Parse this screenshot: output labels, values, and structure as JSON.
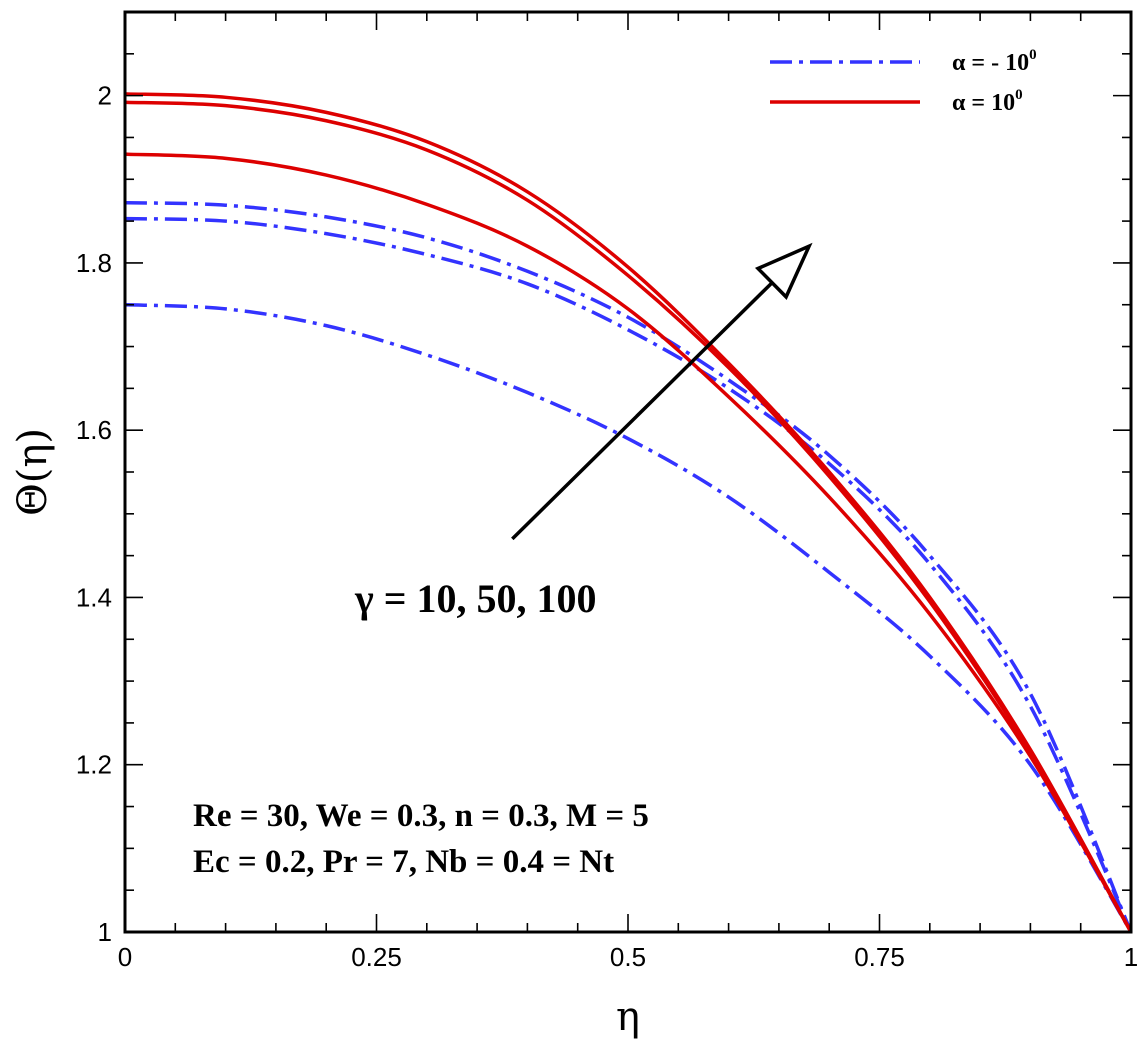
{
  "chart_data": {
    "type": "line",
    "title": "",
    "xlabel": "η",
    "ylabel": "Θ(η)",
    "xlim": [
      0,
      1
    ],
    "ylim": [
      1,
      2.1
    ],
    "xticks": [
      0,
      0.25,
      0.5,
      0.75,
      1
    ],
    "xtick_labels": [
      "0",
      "0.25",
      "0.5",
      "0.75",
      "1"
    ],
    "yticks": [
      1,
      1.2,
      1.4,
      1.6,
      1.8,
      2
    ],
    "ytick_labels": [
      "1",
      "1.2",
      "1.4",
      "1.6",
      "1.8",
      "2"
    ],
    "grid": false,
    "legend_position": "top-right",
    "legend": [
      {
        "label": "α = - 10",
        "superscript": "0",
        "style": "dashdot",
        "color": "#3333ff"
      },
      {
        "label": "α = 10",
        "superscript": "0",
        "style": "solid",
        "color": "#dd0000"
      }
    ],
    "x": [
      0,
      0.1,
      0.2,
      0.3,
      0.4,
      0.5,
      0.6,
      0.7,
      0.8,
      0.9,
      1.0
    ],
    "series": [
      {
        "group": 0,
        "gamma": 10,
        "values": [
          1.75,
          1.745,
          1.725,
          1.69,
          1.645,
          1.59,
          1.52,
          1.43,
          1.33,
          1.2,
          1.0
        ]
      },
      {
        "group": 0,
        "gamma": 50,
        "values": [
          1.853,
          1.85,
          1.835,
          1.81,
          1.775,
          1.72,
          1.65,
          1.56,
          1.44,
          1.27,
          1.0
        ]
      },
      {
        "group": 0,
        "gamma": 100,
        "values": [
          1.872,
          1.869,
          1.855,
          1.83,
          1.79,
          1.735,
          1.66,
          1.57,
          1.45,
          1.285,
          1.0
        ]
      },
      {
        "group": 1,
        "gamma": 10,
        "values": [
          1.93,
          1.925,
          1.905,
          1.87,
          1.82,
          1.745,
          1.64,
          1.52,
          1.38,
          1.21,
          1.0
        ]
      },
      {
        "group": 1,
        "gamma": 50,
        "values": [
          1.992,
          1.988,
          1.97,
          1.935,
          1.875,
          1.785,
          1.675,
          1.545,
          1.395,
          1.215,
          1.0
        ]
      },
      {
        "group": 1,
        "gamma": 100,
        "values": [
          2.002,
          1.998,
          1.98,
          1.945,
          1.885,
          1.795,
          1.68,
          1.55,
          1.4,
          1.218,
          1.0
        ]
      }
    ],
    "annotations": {
      "gamma_label": "γ = 10, 50, 100",
      "params_line1": "Re = 30, We = 0.3, n = 0.3, M = 5",
      "params_line2": "Ec = 0.2, Pr = 7, Nb = 0.4 = Nt",
      "arrow": {
        "from": [
          0.385,
          1.47
        ],
        "to": [
          0.68,
          1.82
        ]
      }
    }
  }
}
